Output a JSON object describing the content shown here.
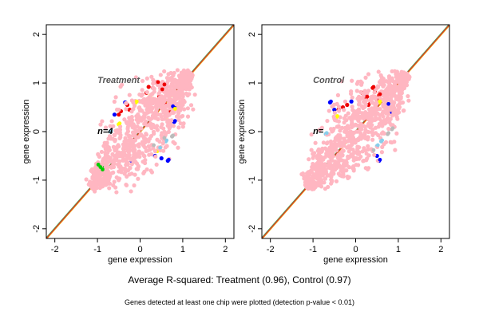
{
  "caption": {
    "main": "Average R-squared: Treatment (0.96), Control (0.97)",
    "sub": "Genes detected at least one chip were plotted (detection p-value < 0.01)"
  },
  "colors": {
    "cloud": "#ffb6c1",
    "red": "#ee0000",
    "blue": "#0000ff",
    "yellow": "#ffff00",
    "green": "#00cc00",
    "lightblue": "#87ceeb",
    "grey": "#bbbbbb",
    "line_red": "#dd2222",
    "line_orange": "#e6a817",
    "line_green": "#55aa55"
  },
  "chart_data": [
    {
      "type": "scatter",
      "title": "Treatment",
      "annotation": "n=4",
      "xlabel": "gene expression",
      "ylabel": "gene expression",
      "xlim": [
        -2.2,
        2.2
      ],
      "ylim": [
        -2.2,
        2.2
      ],
      "xticks": [
        -2,
        -1,
        0,
        1,
        2
      ],
      "yticks": [
        -2,
        -1,
        0,
        1,
        2
      ],
      "r_squared": 0.96,
      "cloud_range": [
        -1.15,
        1.2
      ],
      "outliers": [
        {
          "color": "red",
          "points": [
            [
              0.4,
              1.0
            ],
            [
              0.55,
              0.95
            ],
            [
              0.5,
              0.85
            ],
            [
              0.45,
              0.72
            ],
            [
              0.35,
              0.62
            ],
            [
              0.6,
              0.55
            ],
            [
              -0.3,
              0.55
            ],
            [
              -0.45,
              0.42
            ],
            [
              -0.25,
              0.45
            ],
            [
              0.3,
              0.9
            ],
            [
              0.15,
              0.8
            ],
            [
              0.7,
              0.4
            ],
            [
              -0.5,
              0.35
            ],
            [
              0.1,
              0.66
            ],
            [
              0.45,
              0.6
            ],
            [
              0.2,
              0.92
            ]
          ]
        },
        {
          "color": "blue",
          "points": [
            [
              0.8,
              0.2
            ],
            [
              0.65,
              -0.6
            ],
            [
              0.75,
              0.5
            ],
            [
              -0.6,
              0.35
            ],
            [
              0.55,
              0.45
            ],
            [
              -0.2,
              -0.6
            ],
            [
              0.5,
              -0.55
            ],
            [
              0.35,
              -0.5
            ],
            [
              -0.35,
              0.6
            ],
            [
              0.85,
              0.5
            ]
          ]
        },
        {
          "color": "yellow",
          "points": [
            [
              -0.1,
              0.6
            ],
            [
              0.8,
              0.45
            ],
            [
              -0.5,
              0.15
            ],
            [
              0.4,
              -0.4
            ],
            [
              0.25,
              0.75
            ],
            [
              0.6,
              0.3
            ]
          ]
        },
        {
          "color": "green",
          "points": [
            [
              -0.95,
              -0.75
            ],
            [
              -1.0,
              -0.7
            ],
            [
              -0.9,
              -0.8
            ],
            [
              -0.85,
              -0.72
            ]
          ]
        },
        {
          "color": "lightblue",
          "points": [
            [
              0.6,
              -0.2
            ],
            [
              0.45,
              -0.35
            ],
            [
              -0.7,
              0.0
            ],
            [
              0.7,
              0.1
            ]
          ]
        },
        {
          "color": "grey",
          "points": [
            [
              0.75,
              -0.1
            ],
            [
              0.55,
              -0.15
            ],
            [
              0.3,
              -0.3
            ],
            [
              -0.4,
              -0.5
            ]
          ]
        }
      ]
    },
    {
      "type": "scatter",
      "title": "Control",
      "annotation": "n=",
      "xlabel": "gene expression",
      "ylabel": "gene expression",
      "xlim": [
        -2.2,
        2.2
      ],
      "ylim": [
        -2.2,
        2.2
      ],
      "xticks": [
        -2,
        -1,
        0,
        1,
        2
      ],
      "yticks": [
        -2,
        -1,
        0,
        1,
        2
      ],
      "r_squared": 0.97,
      "cloud_range": [
        -1.15,
        1.2
      ],
      "outliers": [
        {
          "color": "red",
          "points": [
            [
              0.4,
              0.9
            ],
            [
              0.55,
              0.75
            ],
            [
              0.25,
              0.7
            ],
            [
              0.35,
              0.6
            ],
            [
              -0.3,
              0.5
            ],
            [
              -0.4,
              0.45
            ],
            [
              0.65,
              0.55
            ],
            [
              0.15,
              0.8
            ],
            [
              0.5,
              0.65
            ],
            [
              -0.2,
              0.55
            ],
            [
              0.3,
              0.55
            ],
            [
              0.45,
              0.82
            ]
          ]
        },
        {
          "color": "blue",
          "points": [
            [
              -0.6,
              0.6
            ],
            [
              0.55,
              -0.6
            ],
            [
              0.75,
              0.55
            ],
            [
              -0.5,
              0.45
            ],
            [
              0.2,
              0.75
            ],
            [
              -0.1,
              0.62
            ],
            [
              0.5,
              -0.5
            ],
            [
              0.85,
              0.4
            ]
          ]
        },
        {
          "color": "yellow",
          "points": [
            [
              0.55,
              0.6
            ],
            [
              -0.45,
              0.3
            ]
          ]
        },
        {
          "color": "lightblue",
          "points": [
            [
              0.6,
              -0.2
            ],
            [
              0.5,
              -0.3
            ],
            [
              -0.7,
              -0.05
            ]
          ]
        },
        {
          "color": "grey",
          "points": [
            [
              0.75,
              -0.05
            ],
            [
              0.4,
              -0.4
            ],
            [
              0.85,
              0.05
            ]
          ]
        }
      ]
    }
  ]
}
